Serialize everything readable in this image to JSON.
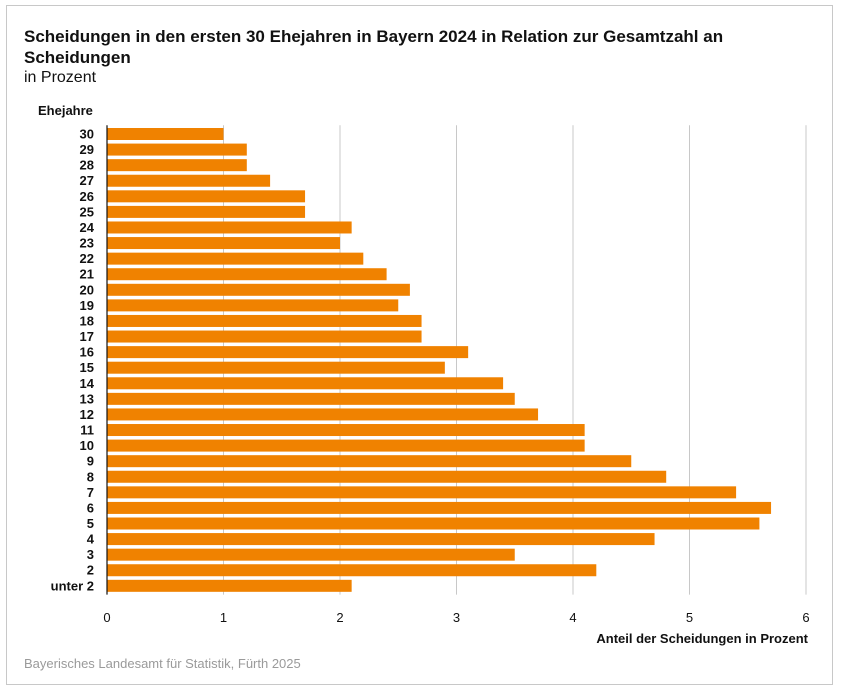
{
  "chart_data": {
    "type": "bar",
    "orientation": "horizontal",
    "title": "Scheidungen in den ersten 30 Ehejahren in Bayern 2024 in Relation zur Gesamtzahl an Scheidungen",
    "subtitle": "in Prozent",
    "ylabel": "Ehejahre",
    "xlabel": "Anteil der Scheidungen in Prozent",
    "source": "Bayerisches Landesamt für Statistik, Fürth 2025",
    "categories": [
      "30",
      "29",
      "28",
      "27",
      "26",
      "25",
      "24",
      "23",
      "22",
      "21",
      "20",
      "19",
      "18",
      "17",
      "16",
      "15",
      "14",
      "13",
      "12",
      "11",
      "10",
      "9",
      "8",
      "7",
      "6",
      "5",
      "4",
      "3",
      "2",
      "unter 2"
    ],
    "values": [
      1.0,
      1.2,
      1.2,
      1.4,
      1.7,
      1.7,
      2.1,
      2.0,
      2.2,
      2.4,
      2.6,
      2.5,
      2.7,
      2.7,
      3.1,
      2.9,
      3.4,
      3.5,
      3.7,
      4.1,
      4.1,
      4.5,
      4.8,
      5.4,
      5.7,
      5.6,
      4.7,
      3.5,
      4.2,
      2.1
    ],
    "xlim": [
      0,
      6
    ],
    "xticks": [
      "0",
      "1",
      "2",
      "3",
      "4",
      "5",
      "6"
    ],
    "grid": true,
    "bar_color": "#f08200",
    "grid_color": "#c8c8c8"
  }
}
